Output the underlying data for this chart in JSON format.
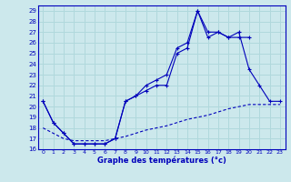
{
  "xlabel": "Graphe des températures (°c)",
  "xlim": [
    -0.5,
    23.5
  ],
  "ylim": [
    16,
    29.5
  ],
  "yticks": [
    16,
    17,
    18,
    19,
    20,
    21,
    22,
    23,
    24,
    25,
    26,
    27,
    28,
    29
  ],
  "xticks": [
    0,
    1,
    2,
    3,
    4,
    5,
    6,
    7,
    8,
    9,
    10,
    11,
    12,
    13,
    14,
    15,
    16,
    17,
    18,
    19,
    20,
    21,
    22,
    23
  ],
  "bg_color": "#cce8ec",
  "line_color": "#0000bb",
  "grid_color": "#b0d8dc",
  "line1_y": [
    20.5,
    18.5,
    17.5,
    16.5,
    16.5,
    16.5,
    16.5,
    17.0,
    20.5,
    21.0,
    22.0,
    22.5,
    23.0,
    25.5,
    26.0,
    29.0,
    26.5,
    27.0,
    26.5,
    27.0,
    23.5,
    22.0,
    20.5,
    20.5
  ],
  "line2_y": [
    20.5,
    18.5,
    17.5,
    16.5,
    16.5,
    16.5,
    16.5,
    17.0,
    20.5,
    21.0,
    21.5,
    22.0,
    22.0,
    25.0,
    25.5,
    29.0,
    27.0,
    27.0,
    26.5,
    26.5,
    26.5,
    null,
    null,
    null
  ],
  "line3_y": [
    18.0,
    17.5,
    17.0,
    16.8,
    16.8,
    16.8,
    16.8,
    17.0,
    17.2,
    17.5,
    17.8,
    18.0,
    18.2,
    18.5,
    18.8,
    19.0,
    19.2,
    19.5,
    19.8,
    20.0,
    20.2,
    20.2,
    20.2,
    20.2
  ]
}
